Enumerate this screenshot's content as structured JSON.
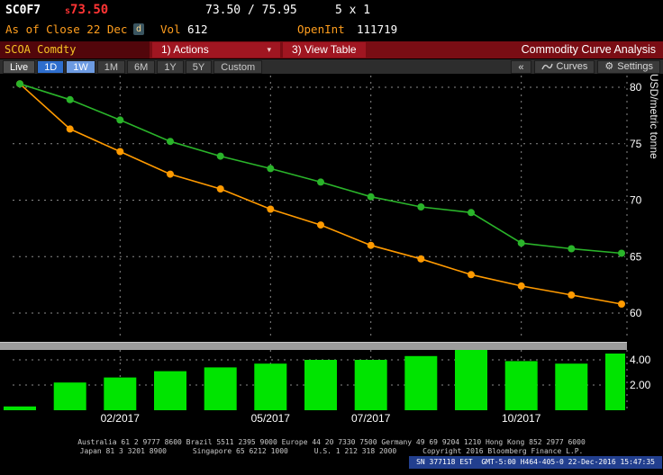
{
  "header": {
    "ticker": "SC0F7",
    "price_prefix": "s",
    "last_price": "73.50",
    "bid_ask": "73.50 / 75.95",
    "lot": "5 x 1",
    "as_of": "As of Close 22 Dec",
    "session_badge": "d",
    "vol_label": "Vol",
    "vol_value": "612",
    "openint_label": "OpenInt",
    "openint_value": "111719"
  },
  "menubar": {
    "security": "SCOA Comdty",
    "actions_label": "1) Actions",
    "actions_caret": "▾",
    "view_table_label": "3) View Table",
    "title": "Commodity Curve Analysis"
  },
  "toolbar": {
    "live_label": "Live",
    "ranges": [
      {
        "label": "1D",
        "state": "active-primary"
      },
      {
        "label": "1W",
        "state": "active-secondary"
      },
      {
        "label": "1M",
        "state": "normal"
      },
      {
        "label": "6M",
        "state": "normal"
      },
      {
        "label": "1Y",
        "state": "normal"
      },
      {
        "label": "5Y",
        "state": "normal"
      },
      {
        "label": "Custom",
        "state": "normal"
      }
    ],
    "collapse_glyph": "«",
    "curves_label": "Curves",
    "settings_glyph": "⚙",
    "settings_label": "Settings"
  },
  "chart_data": {
    "type": "line+bar",
    "ylabel_right": "USD/metric tonne",
    "x": [
      "12/2016",
      "01/2017",
      "02/2017",
      "03/2017",
      "04/2017",
      "05/2017",
      "06/2017",
      "07/2017",
      "08/2017",
      "09/2017",
      "10/2017",
      "11/2017",
      "12/2017"
    ],
    "x_tick_labels": [
      "02/2017",
      "05/2017",
      "07/2017",
      "10/2017"
    ],
    "x_tick_indices": [
      2,
      5,
      7,
      10
    ],
    "price_axis": {
      "ticks": [
        80,
        75,
        70,
        65,
        60
      ],
      "min": 57.6,
      "max": 81.0
    },
    "series": [
      {
        "name": "orange-curve",
        "color": "#ff9a00",
        "values": [
          80.3,
          76.3,
          74.3,
          72.3,
          71.0,
          69.2,
          67.8,
          66.0,
          64.8,
          63.4,
          62.4,
          61.6,
          60.8
        ]
      },
      {
        "name": "green-curve",
        "color": "#2ab42a",
        "values": [
          80.3,
          78.9,
          77.1,
          75.2,
          73.9,
          72.8,
          71.6,
          70.3,
          69.4,
          68.9,
          66.2,
          65.7,
          65.3
        ]
      }
    ],
    "volume_bars": {
      "color": "#00e400",
      "axis_ticks": [
        {
          "value": 2,
          "label": "2.00"
        },
        {
          "value": 4,
          "label": "4.00"
        }
      ],
      "values": [
        0.3,
        2.2,
        2.6,
        3.1,
        3.4,
        3.7,
        4.0,
        4.0,
        4.3,
        4.8,
        3.9,
        3.7,
        4.5
      ]
    }
  },
  "footer": {
    "contacts_line1": "Australia 61 2 9777 8600 Brazil 5511 2395 9000 Europe 44 20 7330 7500 Germany 49 69 9204 1210 Hong Kong 852 2977 6000",
    "contacts_line2": "Japan 81 3 3201 8900      Singapore 65 6212 1000      U.S. 1 212 318 2000      Copyright 2016 Bloomberg Finance L.P.",
    "terminal_info": "SN 377118 EST  GMT-5:00 H464-405-0 22-Dec-2016 15:47:35"
  }
}
